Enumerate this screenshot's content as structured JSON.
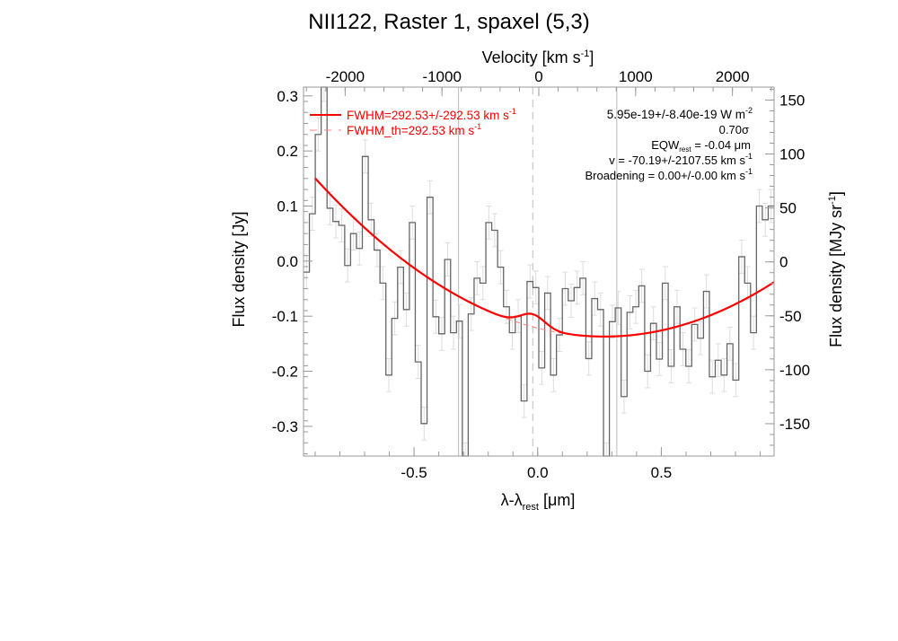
{
  "chart_data": {
    "type": "line",
    "title": "NII122, Raster 1, spaxel (5,3)",
    "xlabel": {
      "main": "λ-λ",
      "sub": "rest",
      "unit": " [μm]"
    },
    "ylabel": "Flux density [Jy]",
    "y2label": {
      "main": "Flux density [MJy sr",
      "sup": "-1",
      "end": "]"
    },
    "x2label": {
      "main": "Velocity [km s",
      "sup": "-1",
      "end": "]"
    },
    "xlim": [
      -0.947,
      0.956
    ],
    "ylim": [
      -0.354,
      0.316
    ],
    "x2lim": [
      -2430,
      2430
    ],
    "y2lim": [
      -180,
      162
    ],
    "xticks": [
      -0.5,
      0.0,
      0.5
    ],
    "xtick_labels": [
      "-0.5",
      "0.0",
      "0.5"
    ],
    "yticks": [
      -0.3,
      -0.2,
      -0.1,
      0.0,
      0.1,
      0.2,
      0.3
    ],
    "ytick_labels": [
      "-0.3",
      "-0.2",
      "-0.1",
      "0.0",
      "0.1",
      "0.2",
      "0.3"
    ],
    "x2ticks": [
      -2000,
      -1000,
      0,
      1000,
      2000
    ],
    "x2tick_labels": [
      "-2000",
      "-1000",
      "0",
      "1000",
      "2000"
    ],
    "y2ticks": [
      -150,
      -100,
      -50,
      0,
      50,
      100,
      150
    ],
    "y2tick_labels": [
      "-150",
      "-100",
      "-50",
      "0",
      "50",
      "100",
      "150"
    ],
    "vlines": [
      {
        "x": -0.32,
        "style": "solid"
      },
      {
        "x": -0.02,
        "style": "dashed"
      },
      {
        "x": 0.32,
        "style": "solid"
      }
    ],
    "spectrum": {
      "name": "data",
      "color": "#666666",
      "error": 0.03,
      "values": [
        -0.02,
        0.086,
        0.23,
        0.32,
        0.096,
        0.072,
        0.065,
        -0.008,
        0.05,
        0.023,
        0.19,
        0.075,
        0.02,
        -0.04,
        -0.207,
        -0.104,
        -0.011,
        -0.088,
        0.07,
        -0.183,
        -0.295,
        0.116,
        -0.101,
        -0.132,
        0.003,
        -0.13,
        -0.109,
        -0.36,
        -0.096,
        -0.031,
        -0.04,
        0.07,
        0.056,
        -0.011,
        -0.083,
        -0.13,
        -0.1,
        -0.254,
        -0.037,
        -0.048,
        -0.194,
        -0.058,
        -0.207,
        -0.134,
        -0.05,
        -0.072,
        -0.048,
        -0.031,
        -0.177,
        -0.068,
        -0.088,
        -0.36,
        -0.11,
        -0.085,
        -0.246,
        -0.093,
        -0.083,
        -0.045,
        -0.2,
        -0.113,
        -0.178,
        -0.04,
        -0.191,
        -0.083,
        -0.16,
        -0.191,
        -0.115,
        -0.14,
        -0.055,
        -0.21,
        -0.18,
        -0.207,
        -0.15,
        -0.216,
        0.008,
        -0.04,
        -0.13,
        0.1,
        0.075,
        0.1
      ]
    },
    "fit": {
      "color": "#ff0000",
      "continuum": {
        "center": 0.27,
        "curvature": 0.21,
        "min": -0.137
      },
      "gaussian": {
        "center": -0.02,
        "amplitude": 0.023,
        "sigma": 0.05
      },
      "x_range": [
        -0.9,
        0.956
      ]
    },
    "legend": {
      "placement": "top",
      "fit_label": {
        "main": "FWHM=292.53+/-292.53 km s",
        "sup": "-1"
      },
      "th_label": {
        "main": "FWHM_th=292.53 km s",
        "sup": "-1"
      },
      "flux": {
        "main": "5.95e-19+/-8.40e-19 W m",
        "sup": "-2"
      },
      "sigma": "0.70σ",
      "eqw": {
        "main": "EQW",
        "sub": "rest",
        "end": " = -0.04 μm"
      },
      "velocity": {
        "main": "v = -70.19+/-2107.55 km s",
        "sup": "-1"
      },
      "broadening": {
        "main": "Broadening = 0.00+/-0.00 km s",
        "sup": "-1"
      }
    }
  }
}
